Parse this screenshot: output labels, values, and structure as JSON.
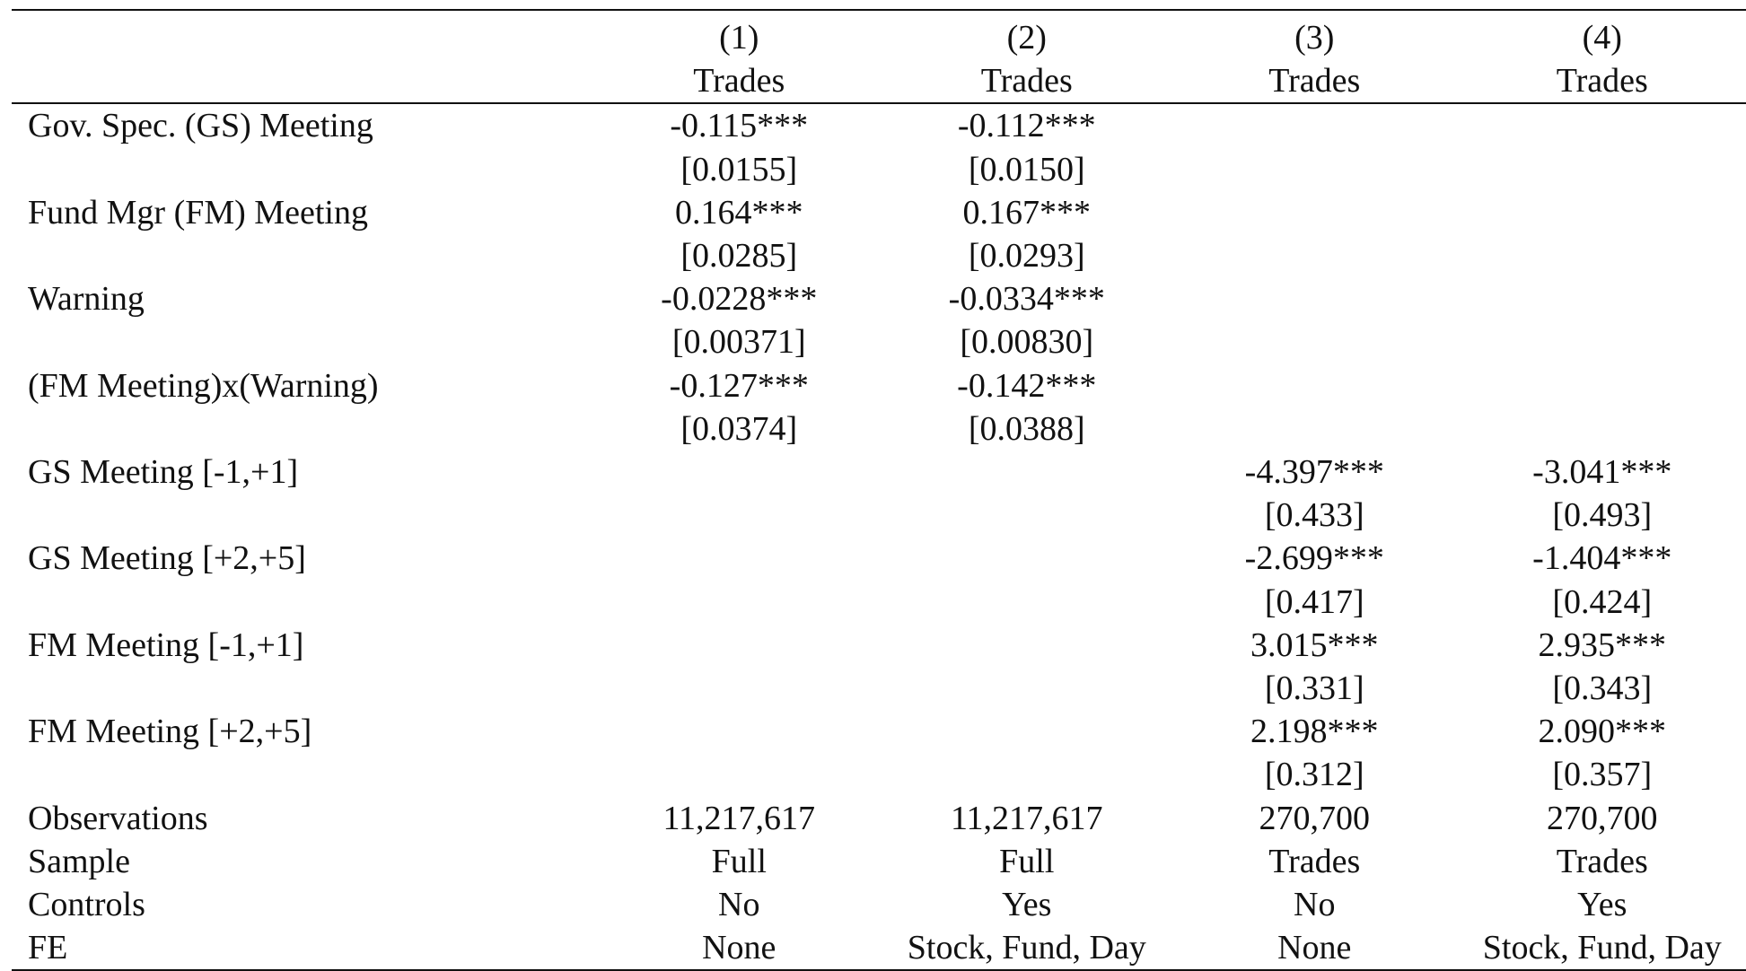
{
  "table": {
    "header": {
      "column_numbers": [
        "(1)",
        "(2)",
        "(3)",
        "(4)"
      ],
      "dependent_variables": [
        "Trades",
        "Trades",
        "Trades",
        "Trades"
      ]
    },
    "rows": [
      {
        "label": "Gov. Spec. (GS) Meeting",
        "values": [
          "-0.115***",
          "-0.112***",
          "",
          ""
        ]
      },
      {
        "label": "",
        "values": [
          "[0.0155]",
          "[0.0150]",
          "",
          ""
        ]
      },
      {
        "label": "Fund Mgr (FM) Meeting",
        "values": [
          "0.164***",
          "0.167***",
          "",
          ""
        ]
      },
      {
        "label": "",
        "values": [
          "[0.0285]",
          "[0.0293]",
          "",
          ""
        ]
      },
      {
        "label": "Warning",
        "values": [
          "-0.0228***",
          "-0.0334***",
          "",
          ""
        ]
      },
      {
        "label": "",
        "values": [
          "[0.00371]",
          "[0.00830]",
          "",
          ""
        ]
      },
      {
        "label": "(FM Meeting)x(Warning)",
        "values": [
          "-0.127***",
          "-0.142***",
          "",
          ""
        ]
      },
      {
        "label": "",
        "values": [
          "[0.0374]",
          "[0.0388]",
          "",
          ""
        ]
      },
      {
        "label": "GS Meeting [-1,+1]",
        "values": [
          "",
          "",
          "-4.397***",
          "-3.041***"
        ]
      },
      {
        "label": "",
        "values": [
          "",
          "",
          "[0.433]",
          "[0.493]"
        ]
      },
      {
        "label": "GS Meeting [+2,+5]",
        "values": [
          "",
          "",
          "-2.699***",
          "-1.404***"
        ]
      },
      {
        "label": "",
        "values": [
          "",
          "",
          "[0.417]",
          "[0.424]"
        ]
      },
      {
        "label": "FM Meeting [-1,+1]",
        "values": [
          "",
          "",
          "3.015***",
          "2.935***"
        ]
      },
      {
        "label": "",
        "values": [
          "",
          "",
          "[0.331]",
          "[0.343]"
        ]
      },
      {
        "label": "FM Meeting [+2,+5]",
        "values": [
          "",
          "",
          "2.198***",
          "2.090***"
        ]
      },
      {
        "label": "",
        "values": [
          "",
          "",
          "[0.312]",
          "[0.357]"
        ]
      },
      {
        "label": "Observations",
        "values": [
          "11,217,617",
          "11,217,617",
          "270,700",
          "270,700"
        ]
      },
      {
        "label": "Sample",
        "values": [
          "Full",
          "Full",
          "Trades",
          "Trades"
        ]
      },
      {
        "label": "Controls",
        "values": [
          "No",
          "Yes",
          "No",
          "Yes"
        ]
      },
      {
        "label": "FE",
        "values": [
          "None",
          "Stock, Fund, Day",
          "None",
          "Stock, Fund, Day"
        ]
      }
    ]
  }
}
